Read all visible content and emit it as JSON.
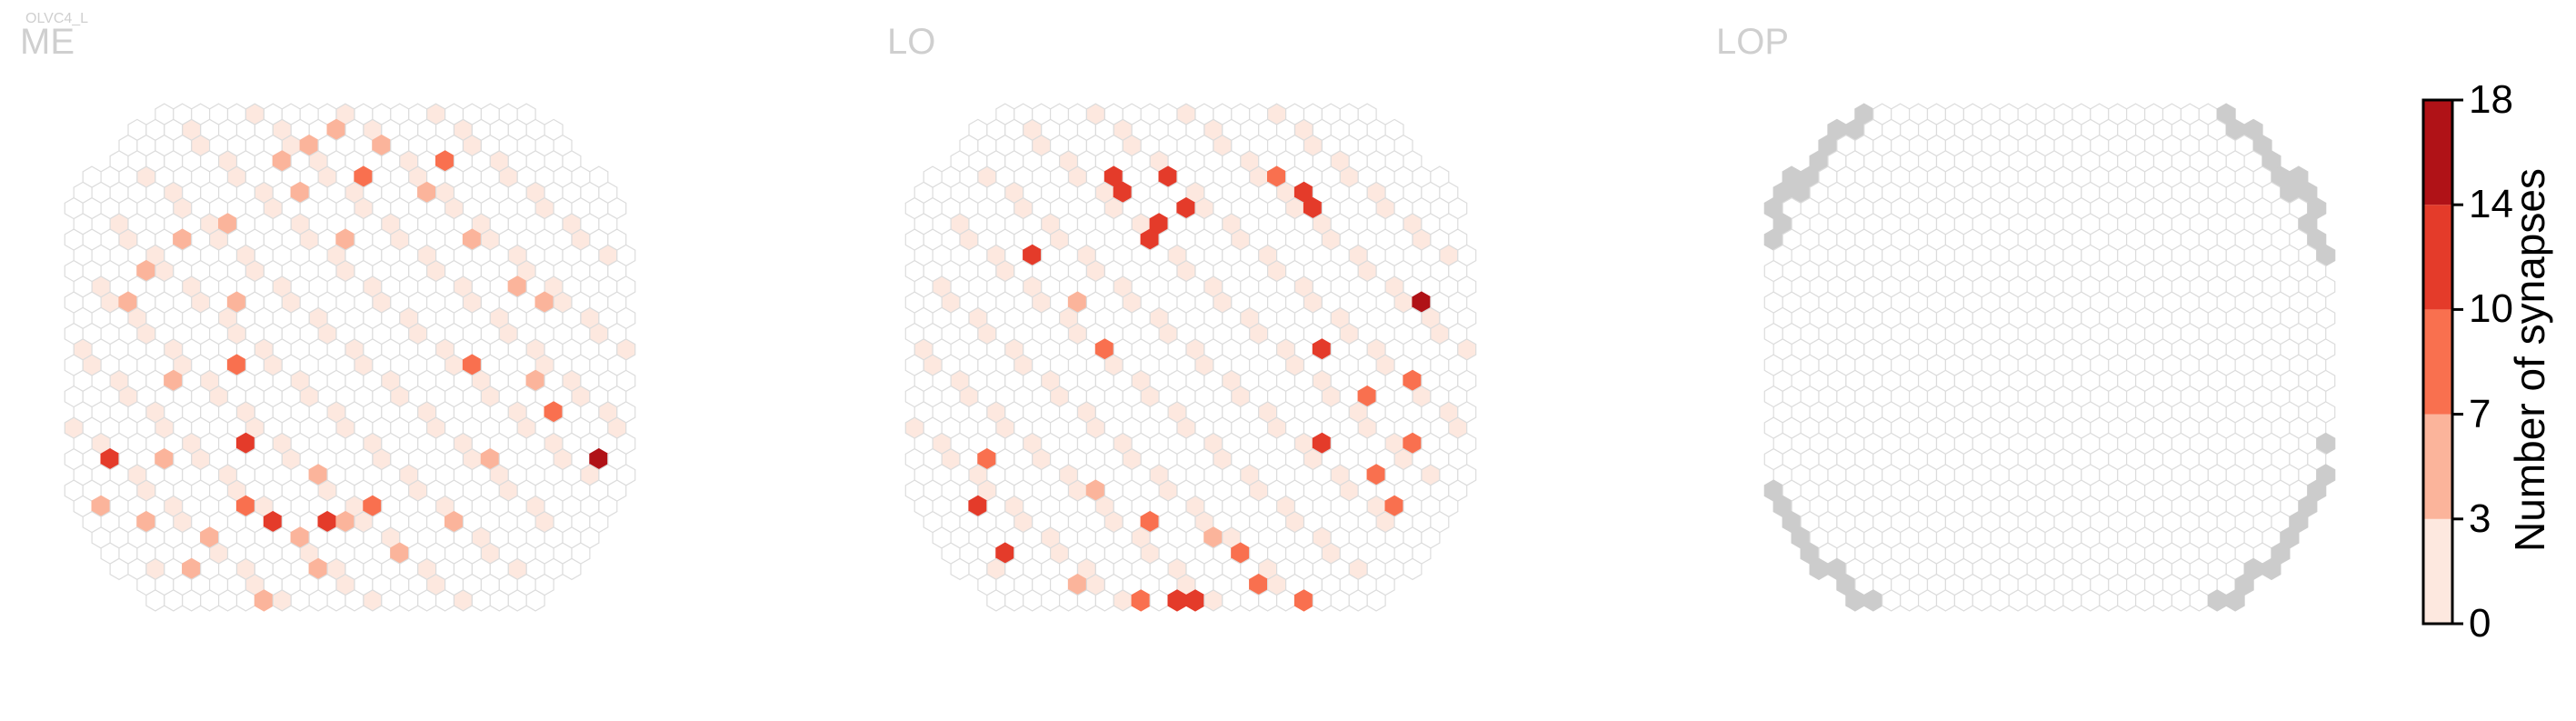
{
  "chart_data": {
    "type": "heatmap",
    "cell_type": "OLVC4_L",
    "panels": [
      {
        "name": "ME",
        "grid": {
          "cols": 31,
          "rows": 32
        },
        "counts": [
          {
            "col": 14,
            "row": 1,
            "value": 4
          },
          {
            "col": 13,
            "row": 2,
            "value": 5
          },
          {
            "col": 17,
            "row": 2,
            "value": 4
          },
          {
            "col": 11,
            "row": 3,
            "value": 5
          },
          {
            "col": 16,
            "row": 4,
            "value": 10
          },
          {
            "col": 20,
            "row": 3,
            "value": 9
          },
          {
            "col": 19,
            "row": 5,
            "value": 5
          },
          {
            "col": 12,
            "row": 5,
            "value": 6
          },
          {
            "col": 8,
            "row": 7,
            "value": 5
          },
          {
            "col": 6,
            "row": 8,
            "value": 6
          },
          {
            "col": 15,
            "row": 8,
            "value": 4
          },
          {
            "col": 22,
            "row": 8,
            "value": 4
          },
          {
            "col": 4,
            "row": 10,
            "value": 5
          },
          {
            "col": 24,
            "row": 11,
            "value": 4
          },
          {
            "col": 9,
            "row": 12,
            "value": 4
          },
          {
            "col": 3,
            "row": 12,
            "value": 6
          },
          {
            "col": 26,
            "row": 12,
            "value": 4
          },
          {
            "col": 9,
            "row": 16,
            "value": 10
          },
          {
            "col": 22,
            "row": 16,
            "value": 10
          },
          {
            "col": 5,
            "row": 17,
            "value": 6
          },
          {
            "col": 25,
            "row": 17,
            "value": 6
          },
          {
            "col": 26,
            "row": 19,
            "value": 10
          },
          {
            "col": 9,
            "row": 21,
            "value": 11
          },
          {
            "col": 29,
            "row": 22,
            "value": 16
          },
          {
            "col": 2,
            "row": 22,
            "value": 11
          },
          {
            "col": 5,
            "row": 22,
            "value": 7
          },
          {
            "col": 23,
            "row": 22,
            "value": 7
          },
          {
            "col": 13,
            "row": 23,
            "value": 5
          },
          {
            "col": 16,
            "row": 25,
            "value": 10
          },
          {
            "col": 14,
            "row": 26,
            "value": 11
          },
          {
            "col": 11,
            "row": 26,
            "value": 12
          },
          {
            "col": 9,
            "row": 25,
            "value": 9
          },
          {
            "col": 12,
            "row": 27,
            "value": 7
          },
          {
            "col": 15,
            "row": 26,
            "value": 6
          },
          {
            "col": 7,
            "row": 27,
            "value": 7
          },
          {
            "col": 4,
            "row": 26,
            "value": 6
          },
          {
            "col": 1,
            "row": 25,
            "value": 5
          },
          {
            "col": 13,
            "row": 29,
            "value": 5
          },
          {
            "col": 10,
            "row": 31,
            "value": 6
          },
          {
            "col": 18,
            "row": 28,
            "value": 5
          },
          {
            "col": 21,
            "row": 26,
            "value": 5
          },
          {
            "col": 6,
            "row": 29,
            "value": 5
          }
        ]
      },
      {
        "name": "LO",
        "grid": {
          "cols": 31,
          "rows": 32
        },
        "counts": [
          {
            "col": 11,
            "row": 4,
            "value": 13
          },
          {
            "col": 11,
            "row": 5,
            "value": 14
          },
          {
            "col": 14,
            "row": 4,
            "value": 13
          },
          {
            "col": 15,
            "row": 6,
            "value": 12
          },
          {
            "col": 13,
            "row": 7,
            "value": 13
          },
          {
            "col": 13,
            "row": 8,
            "value": 12
          },
          {
            "col": 21,
            "row": 5,
            "value": 12
          },
          {
            "col": 22,
            "row": 6,
            "value": 11
          },
          {
            "col": 20,
            "row": 4,
            "value": 8
          },
          {
            "col": 6,
            "row": 9,
            "value": 12
          },
          {
            "col": 9,
            "row": 12,
            "value": 6
          },
          {
            "col": 28,
            "row": 12,
            "value": 16
          },
          {
            "col": 10,
            "row": 15,
            "value": 10
          },
          {
            "col": 22,
            "row": 15,
            "value": 11
          },
          {
            "col": 27,
            "row": 17,
            "value": 10
          },
          {
            "col": 25,
            "row": 18,
            "value": 9
          },
          {
            "col": 22,
            "row": 21,
            "value": 12
          },
          {
            "col": 27,
            "row": 21,
            "value": 10
          },
          {
            "col": 25,
            "row": 23,
            "value": 9
          },
          {
            "col": 4,
            "row": 22,
            "value": 9
          },
          {
            "col": 3,
            "row": 25,
            "value": 12
          },
          {
            "col": 10,
            "row": 24,
            "value": 7
          },
          {
            "col": 13,
            "row": 26,
            "value": 9
          },
          {
            "col": 16,
            "row": 27,
            "value": 7
          },
          {
            "col": 18,
            "row": 28,
            "value": 10
          },
          {
            "col": 5,
            "row": 28,
            "value": 13
          },
          {
            "col": 9,
            "row": 30,
            "value": 6
          },
          {
            "col": 12,
            "row": 31,
            "value": 9
          },
          {
            "col": 14,
            "row": 31,
            "value": 14
          },
          {
            "col": 15,
            "row": 31,
            "value": 13
          },
          {
            "col": 19,
            "row": 30,
            "value": 10
          },
          {
            "col": 21,
            "row": 31,
            "value": 8
          },
          {
            "col": 26,
            "row": 25,
            "value": 8
          }
        ]
      },
      {
        "name": "LOP",
        "grid": {
          "cols": 31,
          "rows": 32
        },
        "counts": []
      }
    ],
    "colorbar": {
      "label": "Number of synapses",
      "ticks": [
        0,
        3,
        7,
        10,
        14,
        18
      ],
      "bins": [
        {
          "from": 0,
          "to": 3,
          "color": "#fde8df"
        },
        {
          "from": 3,
          "to": 7,
          "color": "#fbb49b"
        },
        {
          "from": 7,
          "to": 10,
          "color": "#f9704f"
        },
        {
          "from": 10,
          "to": 14,
          "color": "#e43b2a"
        },
        {
          "from": 14,
          "to": 18,
          "color": "#b01217"
        }
      ],
      "range": [
        0,
        18
      ]
    },
    "colors": {
      "empty_outline": "#dcdcdc",
      "out_of_roi": "#cccccc"
    }
  }
}
